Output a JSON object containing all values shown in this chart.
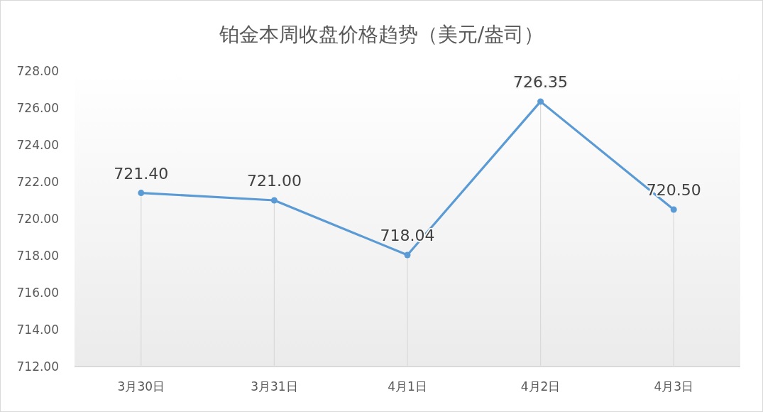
{
  "chart_data": {
    "type": "line",
    "title": "铂金本周收盘价格趋势（美元/盎司）",
    "categories": [
      "3月30日",
      "3月31日",
      "4月1日",
      "4月2日",
      "4月3日"
    ],
    "series": [
      {
        "color": "#5b9bd5",
        "values": [
          721.4,
          721.0,
          718.04,
          726.35,
          720.5
        ]
      }
    ],
    "ylim": [
      712,
      728
    ],
    "yticks": [
      {
        "value": 712,
        "label": "712.00"
      },
      {
        "value": 714,
        "label": "714.00"
      },
      {
        "value": 716,
        "label": "716.00"
      },
      {
        "value": 718,
        "label": "718.00"
      },
      {
        "value": 720,
        "label": "720.00"
      },
      {
        "value": 722,
        "label": "722.00"
      },
      {
        "value": 724,
        "label": "724.00"
      },
      {
        "value": 726,
        "label": "726.00"
      },
      {
        "value": 728,
        "label": "728.00"
      }
    ],
    "value_labels": [
      "721.40",
      "721.00",
      "718.04",
      "726.35",
      "720.50"
    ],
    "grid": "x",
    "marker": "circle",
    "line_style": "solid"
  }
}
